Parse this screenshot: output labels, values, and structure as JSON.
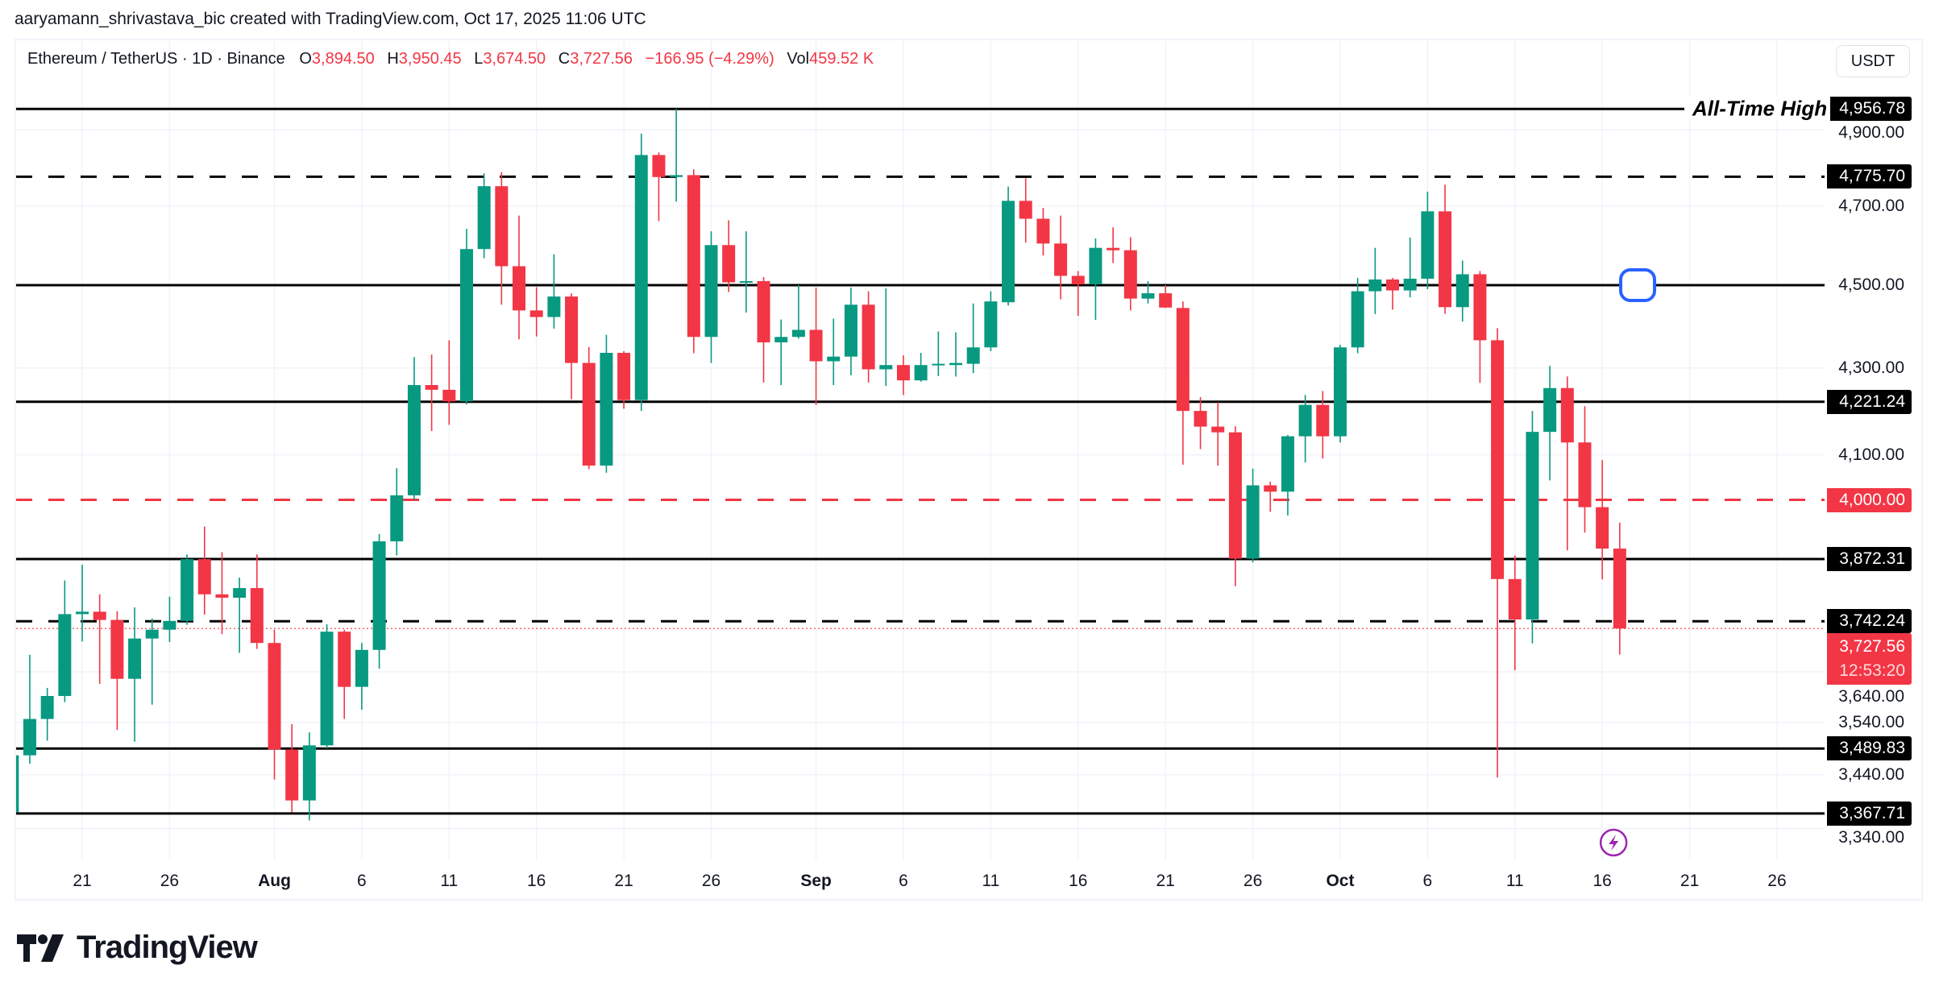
{
  "attribution": "aaryamann_shrivastava_bic created with TradingView.com, Oct 17, 2025 11:06 UTC",
  "legend": {
    "symbol": "Ethereum / TetherUS · 1D · Binance",
    "o_label": "O",
    "o": "3,894.50",
    "h_label": "H",
    "h": "3,950.45",
    "l_label": "L",
    "l": "3,674.50",
    "c_label": "C",
    "c": "3,727.56",
    "change": "−166.95 (−4.29%)",
    "vol_label": "Vol",
    "vol": "459.52 K"
  },
  "currency_button": "USDT",
  "brand": "TradingView",
  "colors": {
    "up": "#089981",
    "down": "#f23645",
    "line": "#000000",
    "support_red": "#f23645",
    "marker_blue": "#2962ff",
    "lightning_purple": "#9c27b0"
  },
  "icons": {
    "marker": "rounded-square-marker",
    "alert": "lightning-icon",
    "logo": "tradingview-logo-icon"
  },
  "chart_data": {
    "type": "candlestick",
    "title": "Ethereum / TetherUS · 1D · Binance",
    "y_scale": "log",
    "ylim": [
      3300,
      5010
    ],
    "grid": true,
    "y_ticks": [
      "4,900.00",
      "4,700.00",
      "4,500.00",
      "4,300.00",
      "4,100.00",
      "3,640.00",
      "3,540.00",
      "3,440.00",
      "3,340.00"
    ],
    "y_tick_values": [
      4900,
      4700,
      4500,
      4300,
      4100,
      3640,
      3540,
      3440,
      3340
    ],
    "x_ticks": [
      {
        "label": "21",
        "date": "2025-07-21",
        "month": false
      },
      {
        "label": "26",
        "date": "2025-07-26",
        "month": false
      },
      {
        "label": "Aug",
        "date": "2025-08-01",
        "month": true
      },
      {
        "label": "6",
        "date": "2025-08-06",
        "month": false
      },
      {
        "label": "11",
        "date": "2025-08-11",
        "month": false
      },
      {
        "label": "16",
        "date": "2025-08-16",
        "month": false
      },
      {
        "label": "21",
        "date": "2025-08-21",
        "month": false
      },
      {
        "label": "26",
        "date": "2025-08-26",
        "month": false
      },
      {
        "label": "Sep",
        "date": "2025-09-01",
        "month": true
      },
      {
        "label": "6",
        "date": "2025-09-06",
        "month": false
      },
      {
        "label": "11",
        "date": "2025-09-11",
        "month": false
      },
      {
        "label": "16",
        "date": "2025-09-16",
        "month": false
      },
      {
        "label": "21",
        "date": "2025-09-21",
        "month": false
      },
      {
        "label": "26",
        "date": "2025-09-26",
        "month": false
      },
      {
        "label": "Oct",
        "date": "2025-10-01",
        "month": true
      },
      {
        "label": "6",
        "date": "2025-10-06",
        "month": false
      },
      {
        "label": "11",
        "date": "2025-10-11",
        "month": false
      },
      {
        "label": "16",
        "date": "2025-10-16",
        "month": false
      },
      {
        "label": "21",
        "date": "2025-10-21",
        "month": false
      },
      {
        "label": "26",
        "date": "2025-10-26",
        "month": false
      }
    ],
    "levels": [
      {
        "price": 4956.78,
        "label": "4,956.78",
        "style": "solid",
        "color": "#000000",
        "annotation": "All-Time High"
      },
      {
        "price": 4775.7,
        "label": "4,775.70",
        "style": "dashed",
        "color": "#000000"
      },
      {
        "price": 4500.0,
        "label": "",
        "style": "solid",
        "color": "#000000"
      },
      {
        "price": 4221.24,
        "label": "4,221.24",
        "style": "solid",
        "color": "#000000"
      },
      {
        "price": 4000.0,
        "label": "4,000.00",
        "style": "dashed",
        "color": "#f23645"
      },
      {
        "price": 3872.31,
        "label": "3,872.31",
        "style": "solid",
        "color": "#000000"
      },
      {
        "price": 3742.24,
        "label": "3,742.24",
        "style": "dashed",
        "color": "#000000"
      },
      {
        "price": 3489.83,
        "label": "3,489.83",
        "style": "solid",
        "color": "#000000"
      },
      {
        "price": 3367.71,
        "label": "3,367.71",
        "style": "solid",
        "color": "#000000"
      }
    ],
    "current_price": {
      "price": 3727.56,
      "label": "3,727.56",
      "countdown": "12:53:20"
    },
    "marker": {
      "date": "2025-10-18",
      "price": 4500
    },
    "alert_marker": {
      "date": "2025-10-16"
    },
    "candle_columns": [
      "date",
      "open",
      "high",
      "low",
      "close"
    ],
    "candles": [
      [
        "2025-07-17",
        3370,
        3490,
        3360,
        3477
      ],
      [
        "2025-07-18",
        3477,
        3674,
        3461,
        3547
      ],
      [
        "2025-07-19",
        3547,
        3608,
        3505,
        3592
      ],
      [
        "2025-07-20",
        3592,
        3827,
        3580,
        3757
      ],
      [
        "2025-07-21",
        3757,
        3860,
        3701,
        3762
      ],
      [
        "2025-07-22",
        3762,
        3798,
        3616,
        3745
      ],
      [
        "2025-07-23",
        3745,
        3763,
        3526,
        3626
      ],
      [
        "2025-07-24",
        3626,
        3771,
        3503,
        3707
      ],
      [
        "2025-07-25",
        3707,
        3748,
        3575,
        3725
      ],
      [
        "2025-07-26",
        3725,
        3793,
        3700,
        3743
      ],
      [
        "2025-07-27",
        3743,
        3882,
        3735,
        3872
      ],
      [
        "2025-07-28",
        3872,
        3942,
        3756,
        3798
      ],
      [
        "2025-07-29",
        3798,
        3887,
        3716,
        3791
      ],
      [
        "2025-07-30",
        3791,
        3833,
        3678,
        3811
      ],
      [
        "2025-07-31",
        3811,
        3882,
        3686,
        3698
      ],
      [
        "2025-08-01",
        3698,
        3725,
        3431,
        3488
      ],
      [
        "2025-08-02",
        3488,
        3537,
        3370,
        3392
      ],
      [
        "2025-08-03",
        3392,
        3521,
        3355,
        3496
      ],
      [
        "2025-08-04",
        3496,
        3736,
        3490,
        3721
      ],
      [
        "2025-08-05",
        3721,
        3725,
        3547,
        3610
      ],
      [
        "2025-08-06",
        3610,
        3698,
        3565,
        3684
      ],
      [
        "2025-08-07",
        3684,
        3926,
        3646,
        3910
      ],
      [
        "2025-08-08",
        3910,
        4070,
        3880,
        4010
      ],
      [
        "2025-08-09",
        4010,
        4326,
        4000,
        4260
      ],
      [
        "2025-08-10",
        4260,
        4332,
        4154,
        4249
      ],
      [
        "2025-08-11",
        4249,
        4366,
        4168,
        4222
      ],
      [
        "2025-08-12",
        4222,
        4641,
        4215,
        4590
      ],
      [
        "2025-08-13",
        4590,
        4785,
        4567,
        4751
      ],
      [
        "2025-08-14",
        4751,
        4788,
        4452,
        4547
      ],
      [
        "2025-08-15",
        4547,
        4675,
        4368,
        4438
      ],
      [
        "2025-08-16",
        4438,
        4495,
        4375,
        4422
      ],
      [
        "2025-08-17",
        4422,
        4577,
        4394,
        4472
      ],
      [
        "2025-08-18",
        4472,
        4480,
        4227,
        4312
      ],
      [
        "2025-08-19",
        4312,
        4350,
        4068,
        4076
      ],
      [
        "2025-08-20",
        4076,
        4379,
        4060,
        4336
      ],
      [
        "2025-08-21",
        4336,
        4340,
        4205,
        4225
      ],
      [
        "2025-08-22",
        4225,
        4890,
        4200,
        4833
      ],
      [
        "2025-08-23",
        4833,
        4840,
        4661,
        4775
      ],
      [
        "2025-08-24",
        4775,
        4956.78,
        4711,
        4780
      ],
      [
        "2025-08-25",
        4780,
        4795,
        4335,
        4374
      ],
      [
        "2025-08-26",
        4374,
        4635,
        4312,
        4600
      ],
      [
        "2025-08-27",
        4600,
        4663,
        4483,
        4507
      ],
      [
        "2025-08-28",
        4507,
        4635,
        4433,
        4510
      ],
      [
        "2025-08-29",
        4510,
        4520,
        4266,
        4361
      ],
      [
        "2025-08-30",
        4361,
        4416,
        4260,
        4374
      ],
      [
        "2025-08-31",
        4374,
        4500,
        4370,
        4391
      ],
      [
        "2025-09-01",
        4391,
        4494,
        4214,
        4316
      ],
      [
        "2025-09-02",
        4316,
        4418,
        4260,
        4327
      ],
      [
        "2025-09-03",
        4327,
        4494,
        4283,
        4452
      ],
      [
        "2025-09-04",
        4452,
        4485,
        4266,
        4297
      ],
      [
        "2025-09-05",
        4297,
        4492,
        4258,
        4307
      ],
      [
        "2025-09-06",
        4307,
        4330,
        4237,
        4271
      ],
      [
        "2025-09-07",
        4271,
        4336,
        4268,
        4307
      ],
      [
        "2025-09-08",
        4307,
        4387,
        4281,
        4310
      ],
      [
        "2025-09-09",
        4307,
        4385,
        4280,
        4312
      ],
      [
        "2025-09-10",
        4310,
        4455,
        4288,
        4349
      ],
      [
        "2025-09-11",
        4349,
        4485,
        4340,
        4460
      ],
      [
        "2025-09-12",
        4458,
        4750,
        4450,
        4713
      ],
      [
        "2025-09-13",
        4713,
        4772,
        4606,
        4667
      ],
      [
        "2025-09-14",
        4667,
        4695,
        4574,
        4604
      ],
      [
        "2025-09-15",
        4604,
        4675,
        4465,
        4523
      ],
      [
        "2025-09-16",
        4523,
        4535,
        4425,
        4502
      ],
      [
        "2025-09-17",
        4502,
        4617,
        4415,
        4593
      ],
      [
        "2025-09-18",
        4593,
        4645,
        4555,
        4587
      ],
      [
        "2025-09-19",
        4587,
        4620,
        4438,
        4467
      ],
      [
        "2025-09-20",
        4467,
        4510,
        4455,
        4480
      ],
      [
        "2025-09-21",
        4480,
        4500,
        4444,
        4445
      ],
      [
        "2025-09-22",
        4444,
        4460,
        4078,
        4200
      ],
      [
        "2025-09-23",
        4200,
        4232,
        4113,
        4164
      ],
      [
        "2025-09-24",
        4164,
        4220,
        4076,
        4151
      ],
      [
        "2025-09-25",
        4151,
        4165,
        3815,
        3873
      ],
      [
        "2025-09-26",
        3873,
        4069,
        3865,
        4032
      ],
      [
        "2025-09-27",
        4032,
        4040,
        3974,
        4018
      ],
      [
        "2025-09-28",
        4018,
        4145,
        3966,
        4142
      ],
      [
        "2025-09-29",
        4142,
        4237,
        4083,
        4214
      ],
      [
        "2025-09-30",
        4214,
        4246,
        4092,
        4142
      ],
      [
        "2025-10-01",
        4142,
        4355,
        4128,
        4349
      ],
      [
        "2025-10-02",
        4349,
        4518,
        4335,
        4485
      ],
      [
        "2025-10-03",
        4485,
        4593,
        4429,
        4514
      ],
      [
        "2025-10-04",
        4514,
        4518,
        4440,
        4487
      ],
      [
        "2025-10-05",
        4487,
        4619,
        4470,
        4516
      ],
      [
        "2025-10-06",
        4516,
        4737,
        4490,
        4686
      ],
      [
        "2025-10-07",
        4686,
        4755,
        4430,
        4446
      ],
      [
        "2025-10-08",
        4446,
        4561,
        4411,
        4527
      ],
      [
        "2025-10-09",
        4527,
        4535,
        4265,
        4366
      ],
      [
        "2025-10-10",
        4366,
        4395,
        3435,
        3830
      ],
      [
        "2025-10-11",
        3830,
        3880,
        3643,
        3746
      ],
      [
        "2025-10-12",
        3746,
        4200,
        3697,
        4152
      ],
      [
        "2025-10-13",
        4152,
        4305,
        4043,
        4253
      ],
      [
        "2025-10-14",
        4253,
        4280,
        3891,
        4128
      ],
      [
        "2025-10-15",
        4128,
        4211,
        3929,
        3984
      ],
      [
        "2025-10-16",
        3984,
        4088,
        3829,
        3894.5
      ],
      [
        "2025-10-17",
        3894.5,
        3950.45,
        3674.5,
        3727.56
      ]
    ]
  }
}
